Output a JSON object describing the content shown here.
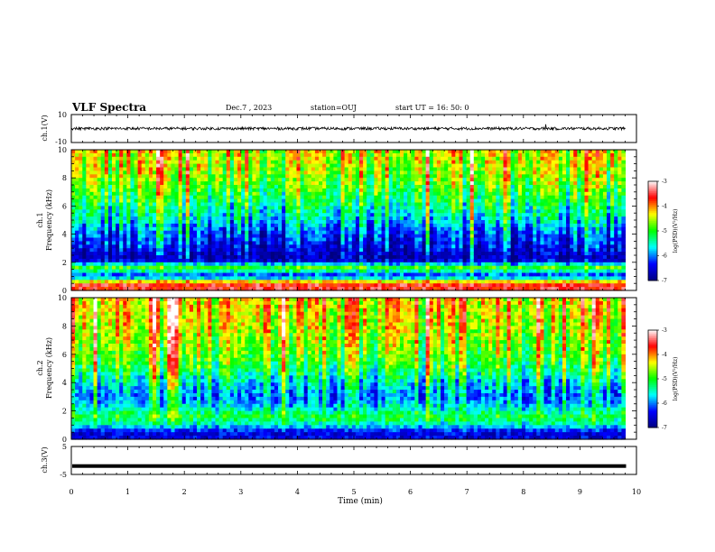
{
  "header": {
    "title": "VLF Spectra",
    "date": "Dec.7 , 2023",
    "station": "station=OUJ",
    "start": "start UT = 16: 50: 0"
  },
  "chart_data": [
    {
      "type": "line",
      "panel": "ch1-waveform",
      "ylabel": "ch.1(V)",
      "ylim": [
        -10,
        10
      ],
      "yticks": [
        "10",
        "-10"
      ],
      "xlim": [
        0,
        9.8
      ],
      "series": [
        {
          "values_summary": {
            "mean": 0,
            "typical_amplitude": 1,
            "spike_time_min": 8.4,
            "spike_amplitude": 3
          }
        }
      ]
    },
    {
      "type": "heatmap",
      "panel": "ch1-spectrogram",
      "ylabel": "ch.1 Frequency (kHz)",
      "ylim": [
        0,
        10
      ],
      "yticks": [
        "0",
        "2",
        "4",
        "6",
        "8",
        "10"
      ],
      "xlim": [
        0,
        9.8
      ],
      "colorbar": {
        "label": "log(PSD)(V²/Hz)",
        "ticks": [
          "-3",
          "-4",
          "-5",
          "-6",
          "-7"
        ],
        "range": [
          -7,
          -3
        ]
      },
      "profile": [
        {
          "freq_khz": 0.5,
          "log_psd": -3.6
        },
        {
          "freq_khz": 1.0,
          "log_psd": -6.4
        },
        {
          "freq_khz": 1.6,
          "log_psd": -4.9
        },
        {
          "freq_khz": 2.2,
          "log_psd": -6.8
        },
        {
          "freq_khz": 3.0,
          "log_psd": -6.5
        },
        {
          "freq_khz": 4.0,
          "log_psd": -6.2
        },
        {
          "freq_khz": 5.0,
          "log_psd": -5.7
        },
        {
          "freq_khz": 6.0,
          "log_psd": -5.3
        },
        {
          "freq_khz": 7.0,
          "log_psd": -5.0
        },
        {
          "freq_khz": 8.0,
          "log_psd": -4.7
        },
        {
          "freq_khz": 9.0,
          "log_psd": -4.5
        },
        {
          "freq_khz": 10.0,
          "log_psd": -4.4
        }
      ]
    },
    {
      "type": "heatmap",
      "panel": "ch2-spectrogram",
      "ylabel": "ch.2 Frequency (kHz)",
      "ylim": [
        0,
        10
      ],
      "yticks": [
        "0",
        "2",
        "4",
        "6",
        "8",
        "10"
      ],
      "xlim": [
        0,
        9.8
      ],
      "colorbar": {
        "label": "log(PSD)(V²/Hz)",
        "ticks": [
          "-3",
          "-4",
          "-5",
          "-6",
          "-7"
        ],
        "range": [
          -7,
          -3
        ]
      },
      "profile": [
        {
          "freq_khz": 0.5,
          "log_psd": -6.5
        },
        {
          "freq_khz": 1.0,
          "log_psd": -5.6
        },
        {
          "freq_khz": 1.6,
          "log_psd": -5.1
        },
        {
          "freq_khz": 2.2,
          "log_psd": -5.6
        },
        {
          "freq_khz": 3.0,
          "log_psd": -6.0
        },
        {
          "freq_khz": 4.0,
          "log_psd": -5.6
        },
        {
          "freq_khz": 5.0,
          "log_psd": -5.1
        },
        {
          "freq_khz": 6.0,
          "log_psd": -4.8
        },
        {
          "freq_khz": 7.0,
          "log_psd": -4.6
        },
        {
          "freq_khz": 8.0,
          "log_psd": -4.4
        },
        {
          "freq_khz": 9.0,
          "log_psd": -4.3
        },
        {
          "freq_khz": 10.0,
          "log_psd": -4.2
        }
      ]
    },
    {
      "type": "line",
      "panel": "ch3-waveform",
      "ylabel": "ch.3(V)",
      "ylim": [
        -5,
        5
      ],
      "yticks": [
        "5",
        "-5"
      ],
      "xlim": [
        0,
        9.8
      ],
      "series": [
        {
          "values_summary": {
            "mean": -2,
            "typical_amplitude": 0
          }
        }
      ]
    }
  ],
  "xaxis": {
    "label": "Time (min)",
    "ticks": [
      "0",
      "1",
      "2",
      "3",
      "4",
      "5",
      "6",
      "7",
      "8",
      "9",
      "10"
    ],
    "range": [
      0,
      10
    ]
  },
  "colors": {
    "colormap": [
      "#000080",
      "#0000ff",
      "#00ffff",
      "#00ff00",
      "#ffff00",
      "#ff0000",
      "#ffffff"
    ]
  }
}
